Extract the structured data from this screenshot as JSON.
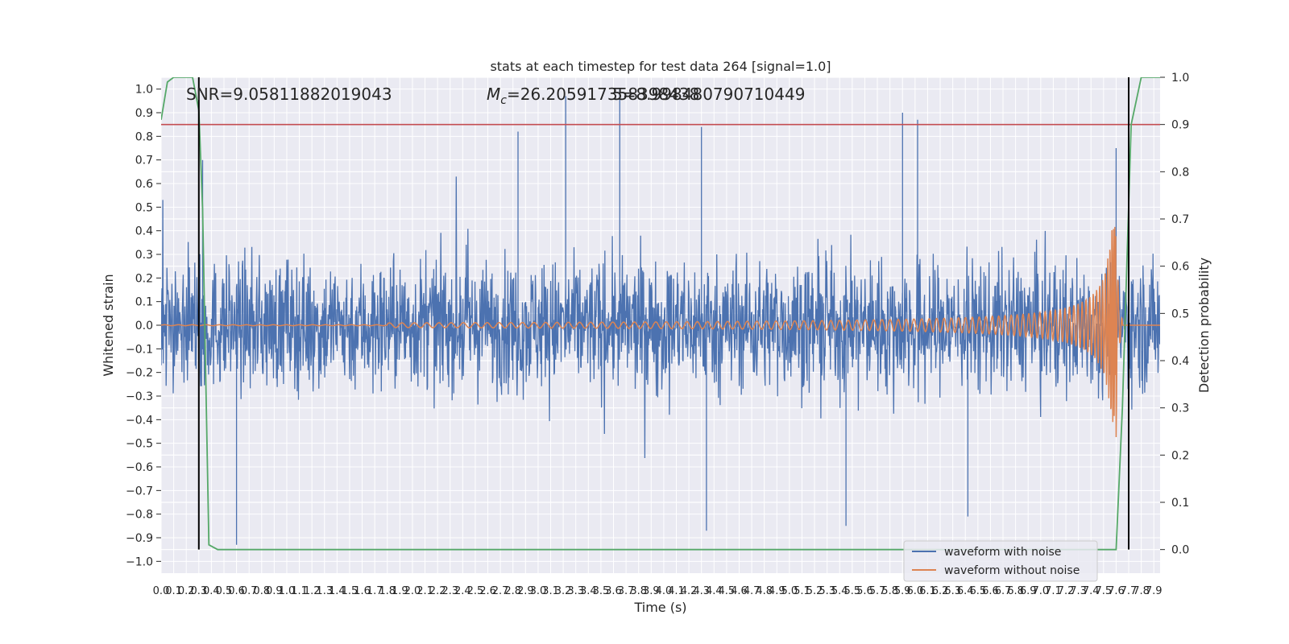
{
  "chart_data": {
    "type": "line",
    "title": "stats at each timestep for test data 264 [signal=1.0]",
    "xlabel": "Time (s)",
    "ylabel": "Whitened strain",
    "y2label": "Detection probability",
    "xlim": [
      0.0,
      7.95
    ],
    "ylim": [
      -1.05,
      1.05
    ],
    "y2lim": [
      -0.05,
      1.0
    ],
    "xticks": [
      "0.0",
      "0.1",
      "0.2",
      "0.3",
      "0.4",
      "0.5",
      "0.6",
      "0.7",
      "0.8",
      "0.9",
      "1.0",
      "1.1",
      "1.2",
      "1.3",
      "1.4",
      "1.5",
      "1.6",
      "1.7",
      "1.8",
      "1.9",
      "2.0",
      "2.1",
      "2.2",
      "2.3",
      "2.4",
      "2.5",
      "2.6",
      "2.7",
      "2.8",
      "2.9",
      "3.0",
      "3.1",
      "3.2",
      "3.3",
      "3.4",
      "3.5",
      "3.6",
      "3.7",
      "3.8",
      "3.9",
      "4.0",
      "4.1",
      "4.2",
      "4.3",
      "4.4",
      "4.5",
      "4.6",
      "4.7",
      "4.8",
      "4.9",
      "5.0",
      "5.1",
      "5.2",
      "5.3",
      "5.4",
      "5.5",
      "5.6",
      "5.7",
      "5.8",
      "5.9",
      "6.0",
      "6.1",
      "6.2",
      "6.3",
      "6.4",
      "6.5",
      "6.6",
      "6.7",
      "6.8",
      "6.9",
      "7.0",
      "7.1",
      "7.2",
      "7.3",
      "7.4",
      "7.5",
      "7.6",
      "7.7",
      "7.8",
      "7.9"
    ],
    "yticks": [
      "1.0",
      "0.9",
      "0.8",
      "0.7",
      "0.6",
      "0.5",
      "0.4",
      "0.3",
      "0.2",
      "0.1",
      "0.0",
      "−0.1",
      "−0.2",
      "−0.3",
      "−0.4",
      "−0.5",
      "−0.6",
      "−0.7",
      "−0.8",
      "−0.9",
      "−1.0"
    ],
    "y2ticks": [
      "1.0",
      "0.9",
      "0.8",
      "0.7",
      "0.6",
      "0.5",
      "0.4",
      "0.3",
      "0.2",
      "0.1",
      "0.0"
    ],
    "annotations": {
      "snr": "SNR=9.05811882019043",
      "mc_symbol": "M",
      "mc_sub": "c",
      "mc_value": "=26.205917358398438",
      "mc_overlap": "5=8.998480790710449"
    },
    "legend_position": "lower-right",
    "colors": {
      "noisy": "#4c72b0",
      "clean": "#dd8452",
      "prob": "#55a868",
      "threshold": "#c44e52",
      "marker": "#000000",
      "axes_bg": "#eaeaf2",
      "grid": "#ffffff"
    },
    "threshold": 0.9,
    "vlines": [
      0.3,
      7.7
    ],
    "series": [
      {
        "name": "waveform with noise",
        "axis": "left",
        "envelope_note": "dense noise, mostly within ±0.45, occasional spikes to ~±0.97",
        "peaks": [
          {
            "x": 0.33,
            "y": 0.7
          },
          {
            "x": 0.6,
            "y": -0.93
          },
          {
            "x": 2.84,
            "y": 0.82
          },
          {
            "x": 3.22,
            "y": 0.97
          },
          {
            "x": 3.65,
            "y": 1.0
          },
          {
            "x": 4.3,
            "y": 0.84
          },
          {
            "x": 4.34,
            "y": -0.87
          },
          {
            "x": 5.45,
            "y": -0.85
          },
          {
            "x": 5.9,
            "y": 0.9
          },
          {
            "x": 6.02,
            "y": 0.87
          },
          {
            "x": 6.42,
            "y": -0.81
          },
          {
            "x": 7.6,
            "y": 0.75
          }
        ]
      },
      {
        "name": "waveform without noise",
        "axis": "left",
        "chirp_start": 1.8,
        "merger_time": 7.6,
        "peak_amplitude": 0.42
      },
      {
        "name": "detection probability",
        "axis": "right",
        "x": [
          0.0,
          0.05,
          0.1,
          0.18,
          0.25,
          0.3,
          0.33,
          0.38,
          0.45,
          0.6,
          7.6,
          7.65,
          7.72,
          7.8,
          7.95
        ],
        "y": [
          0.91,
          0.99,
          1.0,
          1.0,
          1.0,
          0.93,
          0.72,
          0.01,
          0.0,
          0.0,
          0.0,
          0.3,
          0.9,
          1.0,
          1.0
        ]
      }
    ]
  }
}
